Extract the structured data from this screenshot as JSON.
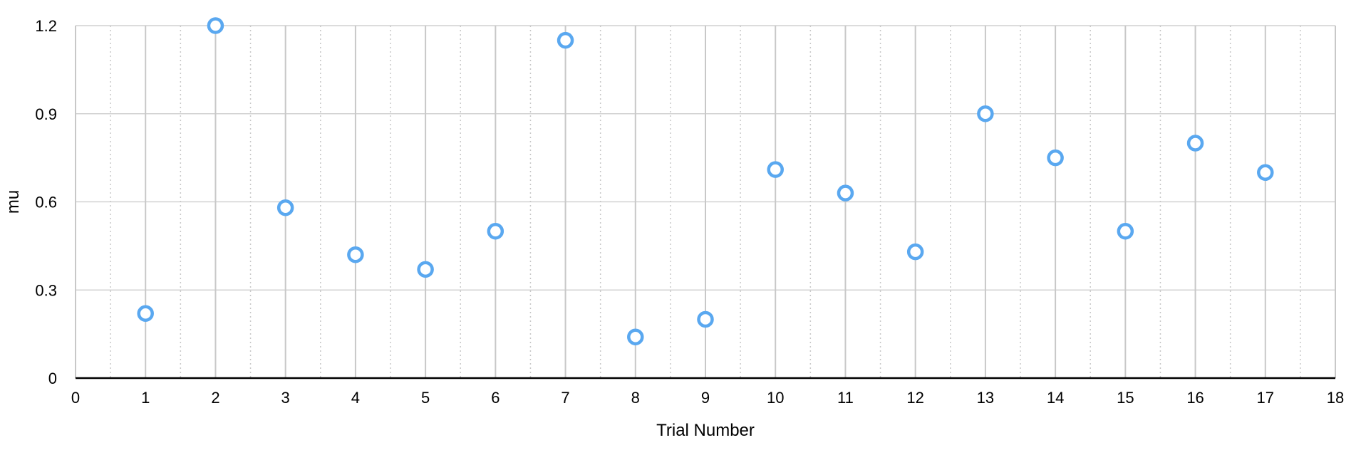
{
  "chart_data": {
    "type": "scatter",
    "title": "",
    "xlabel": "Trial Number",
    "ylabel": "mu",
    "xlim": [
      0,
      18
    ],
    "ylim": [
      0,
      1.2
    ],
    "xticks": [
      "0",
      "1",
      "2",
      "3",
      "4",
      "5",
      "6",
      "7",
      "8",
      "9",
      "10",
      "11",
      "12",
      "13",
      "14",
      "15",
      "16",
      "17",
      "18"
    ],
    "yticks": [
      "0",
      "0.3",
      "0.6",
      "0.9",
      "1.2"
    ],
    "grid": true,
    "legend": "none",
    "marker": "hollow-circle",
    "colors": {
      "marker": "#5aa8f0",
      "grid_major": "#c8c8c8",
      "grid_minor": "#c8c8c8",
      "axis": "#000000",
      "text": "#000000"
    },
    "series": [
      {
        "x": [
          1,
          2,
          3,
          4,
          5,
          6,
          7,
          8,
          9,
          10,
          11,
          12,
          13,
          14,
          15,
          16,
          17
        ],
        "y": [
          0.22,
          1.2,
          0.58,
          0.42,
          0.37,
          0.5,
          1.15,
          0.14,
          0.2,
          0.71,
          0.63,
          0.43,
          0.9,
          0.75,
          0.5,
          0.8,
          0.7
        ]
      }
    ]
  }
}
